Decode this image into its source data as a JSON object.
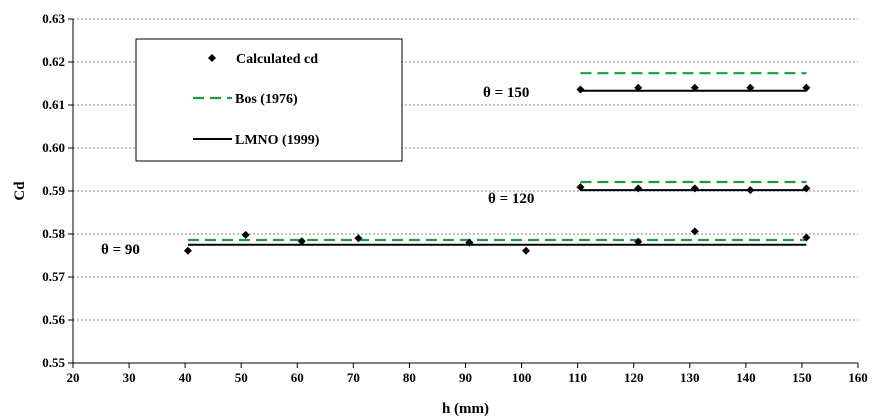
{
  "chart_data": {
    "type": "scatter",
    "xlabel": "h (mm)",
    "ylabel": "Cd",
    "xlim": [
      20,
      160
    ],
    "ylim": [
      0.55,
      0.63
    ],
    "x_ticks": [
      20,
      30,
      40,
      50,
      60,
      70,
      80,
      90,
      100,
      110,
      120,
      130,
      140,
      150,
      160
    ],
    "y_ticks": [
      0.55,
      0.56,
      0.57,
      0.58,
      0.59,
      0.6,
      0.61,
      0.62,
      0.63
    ],
    "y_tick_labels": [
      "0.55",
      "0.56",
      "0.57",
      "0.58",
      "0.59",
      "0.60",
      "0.61",
      "0.62",
      "0.63"
    ],
    "grid": "horizontal dotted",
    "legend": {
      "placement": "top-left",
      "entries": [
        {
          "label": "Calculated cd",
          "marker": "diamond",
          "color": "#000000"
        },
        {
          "label": "Bos (1976)",
          "line": "dashed",
          "color": "#1e9b3a"
        },
        {
          "label": "LMNO (1999)",
          "line": "solid",
          "color": "#000000"
        }
      ]
    },
    "groups": [
      {
        "label": "θ = 90",
        "calculated": {
          "x": [
            40.5,
            50.8,
            60.8,
            70.9,
            90.7,
            100.8,
            120.8,
            130.9,
            150.8
          ],
          "y": [
            0.5761,
            0.5798,
            0.5783,
            0.579,
            0.578,
            0.5761,
            0.5782,
            0.5806,
            0.5792
          ]
        },
        "bos": {
          "x": [
            40.5,
            150.8
          ],
          "y": 0.5786
        },
        "lmno": {
          "x": [
            40.5,
            150.8
          ],
          "y": 0.5775
        }
      },
      {
        "label": "θ = 120",
        "calculated": {
          "x": [
            110.5,
            120.8,
            130.9,
            140.8,
            150.8
          ],
          "y": [
            0.5909,
            0.5906,
            0.5906,
            0.5902,
            0.5906
          ]
        },
        "bos": {
          "x": [
            110.5,
            150.8
          ],
          "y": 0.5921
        },
        "lmno": {
          "x": [
            110.5,
            150.8
          ],
          "y": 0.5902
        }
      },
      {
        "label": "θ = 150",
        "calculated": {
          "x": [
            110.5,
            120.8,
            130.9,
            140.8,
            150.8
          ],
          "y": [
            0.6136,
            0.614,
            0.614,
            0.614,
            0.614
          ]
        },
        "bos": {
          "x": [
            110.5,
            150.8
          ],
          "y": 0.6174
        },
        "lmno": {
          "x": [
            110.5,
            150.8
          ],
          "y": 0.6133
        }
      }
    ]
  }
}
